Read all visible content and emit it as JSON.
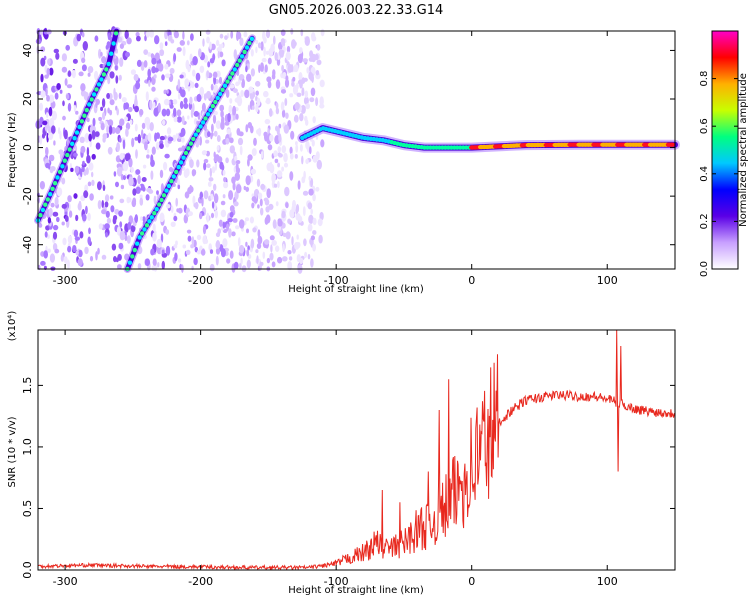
{
  "figure": {
    "title": "GN05.2026.003.22.33.G14"
  },
  "chart_data": [
    {
      "type": "heatmap",
      "name": "spectrogram",
      "xlabel": "Height of straight line (km)",
      "ylabel": "Frequency (Hz)",
      "xlim": [
        -320,
        150
      ],
      "ylim": [
        -50,
        48
      ],
      "x_ticks": [
        -300,
        -200,
        -100,
        0,
        100
      ],
      "y_ticks": [
        -40,
        -20,
        0,
        20,
        40
      ],
      "grid": false,
      "colorbar": {
        "label": "Normalized spectral amplitude",
        "range": [
          0.0,
          1.0
        ],
        "ticks": [
          0.0,
          0.2,
          0.4,
          0.6,
          0.8
        ],
        "colormap": [
          "#ffffff",
          "#c8a0ff",
          "#5a00e6",
          "#0000ff",
          "#00c8ff",
          "#00ff80",
          "#c8ff00",
          "#ffb000",
          "#ff0000",
          "#ff00c8"
        ]
      },
      "features": [
        {
          "name": "steep ridge",
          "points": [
            [
              -320,
              -30
            ],
            [
              -310,
              -18
            ],
            [
              -296,
              0
            ],
            [
              -282,
              18
            ],
            [
              -268,
              34
            ],
            [
              -262,
              48
            ]
          ]
        },
        {
          "name": "second ridge",
          "points": [
            [
              -254,
              -50
            ],
            [
              -245,
              -37
            ],
            [
              -232,
              -25
            ],
            [
              -218,
              -10
            ],
            [
              -205,
              4
            ],
            [
              -190,
              18
            ],
            [
              -175,
              32
            ],
            [
              -162,
              45
            ]
          ]
        },
        {
          "name": "converging band",
          "points": [
            [
              -125,
              4
            ],
            [
              -110,
              8
            ],
            [
              -95,
              6
            ],
            [
              -80,
              4
            ],
            [
              -65,
              3
            ],
            [
              -50,
              1
            ],
            [
              -35,
              0
            ],
            [
              -20,
              0
            ],
            [
              0,
              0
            ],
            [
              40,
              1
            ],
            [
              80,
              1.2
            ],
            [
              120,
              1.2
            ],
            [
              150,
              1.2
            ]
          ]
        }
      ]
    },
    {
      "type": "line",
      "name": "snr",
      "xlabel": "Height of straight line (km)",
      "ylabel": "SNR (10 * v/v)",
      "y_multiplier": "(x10⁴)",
      "xlim": [
        -320,
        150
      ],
      "ylim": [
        0,
        1.95
      ],
      "x_ticks": [
        -300,
        -200,
        -100,
        0,
        100
      ],
      "y_ticks": [
        0.0,
        0.5,
        1.0,
        1.5
      ],
      "color": "#e8281e",
      "envelope": [
        [
          -320,
          0.03
        ],
        [
          -280,
          0.04
        ],
        [
          -240,
          0.03
        ],
        [
          -200,
          0.025
        ],
        [
          -160,
          0.02
        ],
        [
          -120,
          0.02
        ],
        [
          -100,
          0.05
        ],
        [
          -90,
          0.1
        ],
        [
          -80,
          0.14
        ],
        [
          -70,
          0.22
        ],
        [
          -60,
          0.17
        ],
        [
          -50,
          0.22
        ],
        [
          -40,
          0.33
        ],
        [
          -30,
          0.38
        ],
        [
          -20,
          0.5
        ],
        [
          -10,
          0.65
        ],
        [
          0,
          0.85
        ],
        [
          10,
          1.05
        ],
        [
          20,
          1.2
        ],
        [
          30,
          1.3
        ],
        [
          40,
          1.38
        ],
        [
          50,
          1.4
        ],
        [
          60,
          1.42
        ],
        [
          70,
          1.42
        ],
        [
          80,
          1.41
        ],
        [
          90,
          1.41
        ],
        [
          100,
          1.39
        ],
        [
          110,
          1.35
        ],
        [
          120,
          1.31
        ],
        [
          130,
          1.29
        ],
        [
          140,
          1.28
        ],
        [
          150,
          1.27
        ]
      ],
      "spikes": [
        {
          "x": -17,
          "y": 1.55
        },
        {
          "x": -24,
          "y": 1.3
        },
        {
          "x": -32,
          "y": 0.8
        },
        {
          "x": -66,
          "y": 0.65
        },
        {
          "x": -53,
          "y": 0.55
        },
        {
          "x": 107,
          "y": 1.95
        },
        {
          "x": 110,
          "y": 1.82
        },
        {
          "x": 108,
          "y": 0.8
        }
      ]
    }
  ]
}
